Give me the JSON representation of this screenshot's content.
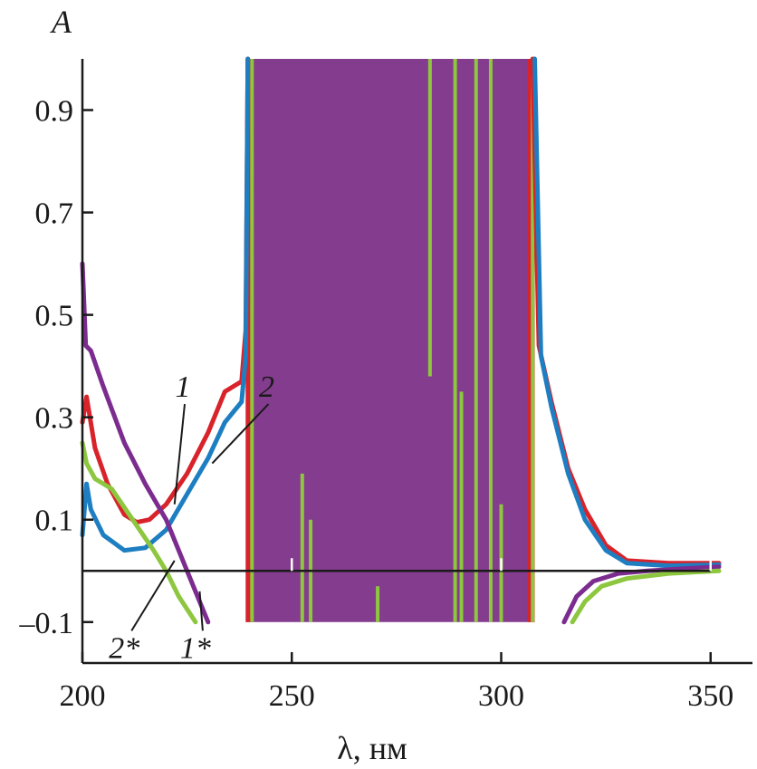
{
  "chart_data": {
    "type": "line",
    "xlabel": "λ, нм",
    "ylabel": "A",
    "xlim": [
      200,
      360
    ],
    "ylim": [
      -0.18,
      1.0
    ],
    "xticks": [
      200,
      250,
      300,
      350
    ],
    "yticks": [
      0.9,
      0.7,
      0.5,
      0.3,
      0.1,
      -0.1
    ],
    "ytick_labels": [
      "0.9",
      "0.7",
      "0.5",
      "0.3",
      "0.1",
      "–0.1"
    ],
    "grid": false,
    "baseline": {
      "y": 0.0,
      "x_range": [
        200,
        350
      ]
    },
    "saturated_region": {
      "x_range": [
        239,
        308
      ],
      "y_range": [
        -0.1,
        1.0
      ],
      "color": "#843C8E",
      "edge_color": "#D8232A",
      "stripe_color": "#8DC63F",
      "stripes": [
        {
          "x": 240.5,
          "y0": -0.1,
          "y1": 1.0
        },
        {
          "x": 252.5,
          "y0": -0.1,
          "y1": 0.19
        },
        {
          "x": 254.5,
          "y0": -0.1,
          "y1": 0.1
        },
        {
          "x": 270.5,
          "y0": -0.1,
          "y1": -0.03
        },
        {
          "x": 283.0,
          "y0": 0.38,
          "y1": 1.0
        },
        {
          "x": 289.0,
          "y0": -0.1,
          "y1": 1.0
        },
        {
          "x": 290.5,
          "y0": -0.1,
          "y1": 0.35
        },
        {
          "x": 294.0,
          "y0": -0.1,
          "y1": 1.0
        },
        {
          "x": 297.5,
          "y0": -0.1,
          "y1": 1.0
        },
        {
          "x": 300.0,
          "y0": -0.1,
          "y1": 0.13
        },
        {
          "x": 307.5,
          "y0": -0.1,
          "y1": 1.0
        }
      ]
    },
    "series": [
      {
        "color": "#D8232A",
        "points": [
          [
            200,
            0.29
          ],
          [
            201,
            0.34
          ],
          [
            203,
            0.24
          ],
          [
            206,
            0.17
          ],
          [
            210,
            0.11
          ],
          [
            213,
            0.095
          ],
          [
            216,
            0.1
          ],
          [
            220,
            0.13
          ],
          [
            225,
            0.19
          ],
          [
            230,
            0.27
          ],
          [
            234,
            0.35
          ],
          [
            236,
            0.36
          ],
          [
            238,
            0.37
          ],
          [
            239,
            0.47
          ],
          [
            239.5,
            1.0
          ]
        ]
      },
      {
        "color": "#1E7EC2",
        "points": [
          [
            200,
            0.07
          ],
          [
            201,
            0.17
          ],
          [
            202,
            0.12
          ],
          [
            205,
            0.07
          ],
          [
            210,
            0.04
          ],
          [
            215,
            0.045
          ],
          [
            220,
            0.08
          ],
          [
            225,
            0.15
          ],
          [
            230,
            0.22
          ],
          [
            234,
            0.29
          ],
          [
            236,
            0.31
          ],
          [
            238,
            0.33
          ],
          [
            239,
            0.42
          ],
          [
            239.5,
            1.0
          ]
        ]
      },
      {
        "color": "#D8232A",
        "points": [
          [
            307.5,
            1.0
          ],
          [
            309,
            0.44
          ],
          [
            312,
            0.33
          ],
          [
            316,
            0.2
          ],
          [
            320,
            0.12
          ],
          [
            325,
            0.05
          ],
          [
            330,
            0.02
          ],
          [
            340,
            0.015
          ],
          [
            352,
            0.015
          ]
        ]
      },
      {
        "color": "#1E7EC2",
        "points": [
          [
            308,
            1.0
          ],
          [
            309.5,
            0.42
          ],
          [
            312,
            0.32
          ],
          [
            316,
            0.19
          ],
          [
            320,
            0.1
          ],
          [
            325,
            0.04
          ],
          [
            330,
            0.015
          ],
          [
            340,
            0.01
          ],
          [
            352,
            0.012
          ]
        ]
      },
      {
        "color": "#7B2C8E",
        "points": [
          [
            200,
            0.6
          ],
          [
            200.8,
            0.44
          ],
          [
            202,
            0.43
          ],
          [
            205,
            0.36
          ],
          [
            210,
            0.25
          ],
          [
            215,
            0.17
          ],
          [
            220,
            0.1
          ],
          [
            225,
            0.0
          ],
          [
            228,
            -0.06
          ],
          [
            230,
            -0.1
          ]
        ]
      },
      {
        "color": "#8DC63F",
        "points": [
          [
            200,
            0.25
          ],
          [
            201,
            0.21
          ],
          [
            203,
            0.18
          ],
          [
            207,
            0.16
          ],
          [
            212,
            0.1
          ],
          [
            217,
            0.04
          ],
          [
            220,
            0.0
          ],
          [
            223,
            -0.05
          ],
          [
            227,
            -0.1
          ]
        ]
      },
      {
        "color": "#7B2C8E",
        "points": [
          [
            315,
            -0.1
          ],
          [
            318,
            -0.05
          ],
          [
            322,
            -0.02
          ],
          [
            328,
            -0.005
          ],
          [
            335,
            0.0
          ],
          [
            345,
            0.005
          ],
          [
            352,
            0.008
          ]
        ]
      },
      {
        "color": "#8DC63F",
        "points": [
          [
            317,
            -0.1
          ],
          [
            320,
            -0.06
          ],
          [
            324,
            -0.03
          ],
          [
            330,
            -0.015
          ],
          [
            340,
            -0.005
          ],
          [
            352,
            0.0
          ]
        ]
      }
    ],
    "annotations": [
      {
        "text": "1",
        "x": 224,
        "y": 0.34,
        "pointer_x": 222,
        "pointer_y": 0.13
      },
      {
        "text": "2",
        "x": 244,
        "y": 0.34,
        "pointer_x": 231,
        "pointer_y": 0.21
      },
      {
        "text": "2*",
        "x": 210,
        "y": -0.17,
        "pointer_x": 222,
        "pointer_y": 0.02
      },
      {
        "text": "1*",
        "x": 227,
        "y": -0.17,
        "pointer_x": 228,
        "pointer_y": -0.04
      }
    ]
  }
}
